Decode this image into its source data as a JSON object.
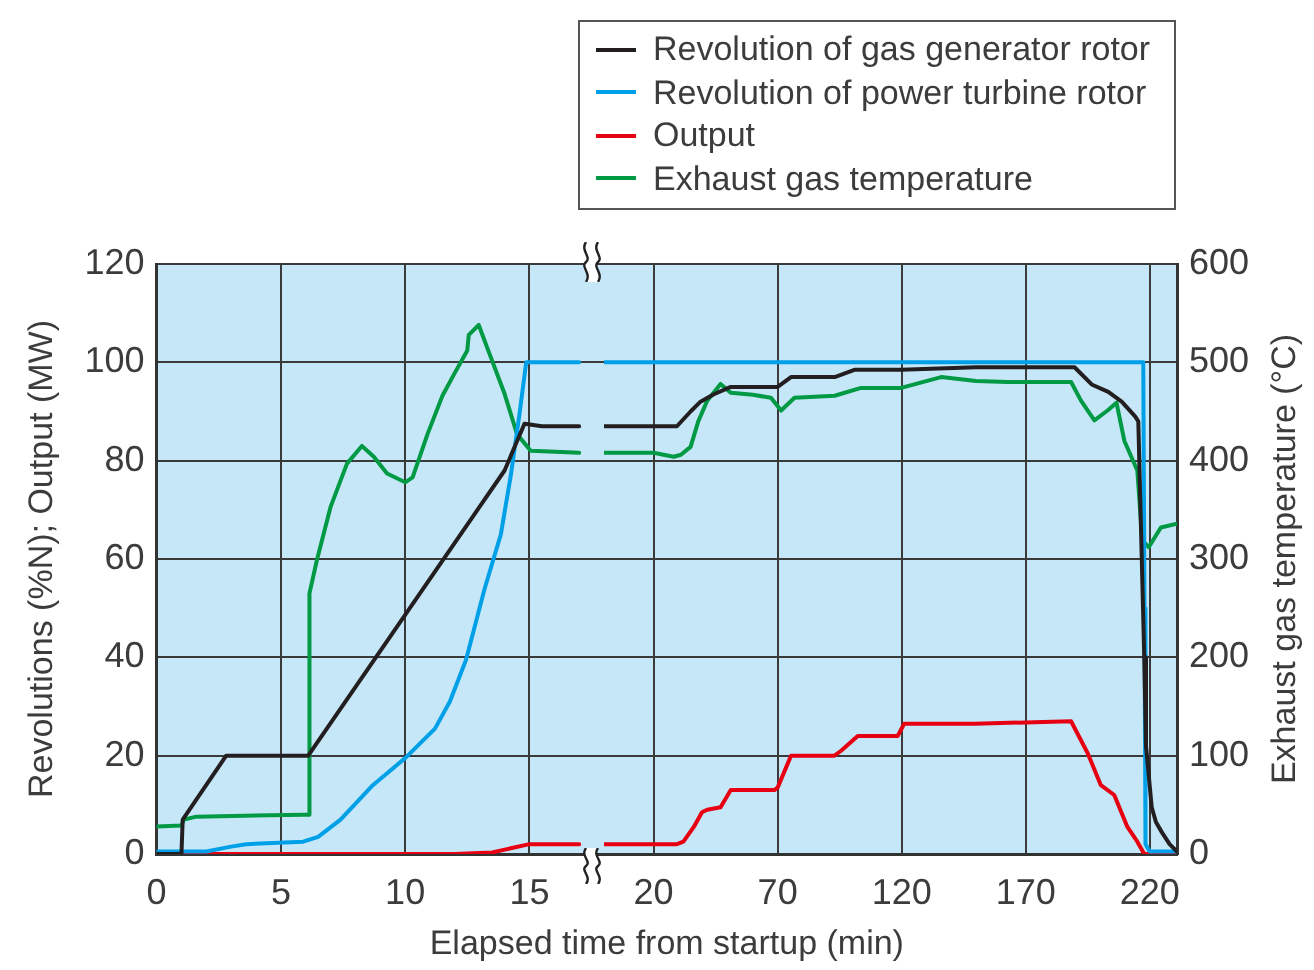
{
  "chart_data": [
    {
      "type": "line",
      "ylabel": "Revolutions (%N); Output (MW)",
      "xlim": [
        0,
        18
      ],
      "xticks": [
        0,
        5,
        10,
        15
      ],
      "ylim": [
        0,
        120
      ],
      "yticks": [
        0,
        20,
        40,
        60,
        80,
        100,
        120
      ],
      "y2lim": [
        0,
        600
      ],
      "tick_labels": "xy",
      "grid": true,
      "marker": "none",
      "line_style": "solid",
      "series": [
        {
          "color": "#231f20",
          "x": [
            0,
            1.0,
            1.05,
            2.8,
            6.1,
            14.0,
            14.8,
            15.5,
            17
          ],
          "values": [
            0,
            0,
            7,
            20,
            20,
            78,
            87.5,
            87,
            87
          ]
        },
        {
          "color": "#00a0e9",
          "x": [
            0,
            2,
            3,
            3.6,
            5.9,
            6.5,
            7.4,
            8.7,
            10,
            11.2,
            11.8,
            12.45,
            13.2,
            13.85,
            14.25,
            14.6,
            14.87,
            17
          ],
          "values": [
            0.5,
            0.5,
            1.5,
            2,
            2.5,
            3.5,
            7,
            14,
            19.5,
            25.5,
            31,
            39.5,
            54,
            65,
            77,
            89.5,
            100,
            100
          ]
        },
        {
          "color": "#e60012",
          "x": [
            0,
            12,
            13.5,
            14.1,
            15,
            17
          ],
          "values": [
            0,
            0,
            0.3,
            1,
            2,
            2
          ]
        },
        {
          "color": "#009944",
          "axis": "y2",
          "x": [
            0,
            1.0,
            1.1,
            1.6,
            5.9,
            6.1,
            6.15,
            6.45,
            7.0,
            7.66,
            8.26,
            8.74,
            9.27,
            10,
            10.3,
            10.9,
            11.5,
            11.97,
            12.5,
            12.56,
            12.96,
            13.3,
            14.0,
            14.5,
            15.05,
            17
          ],
          "values": [
            28,
            29,
            35,
            38,
            40,
            40,
            265,
            299,
            353,
            397,
            415,
            404,
            387,
            378,
            383,
            427,
            466,
            488,
            512,
            528,
            538,
            515,
            468,
            427,
            410,
            408
          ]
        }
      ]
    },
    {
      "type": "line",
      "xlabel": "Elapsed time from startup (min)",
      "y2label": "Exhaust gas temperature (°C)",
      "xlim": [
        0,
        231
      ],
      "xticks": [
        20,
        70,
        120,
        170,
        220
      ],
      "ylim": [
        0,
        120
      ],
      "y2lim": [
        0,
        600
      ],
      "y2ticks": [
        0,
        100,
        200,
        300,
        400,
        500,
        600
      ],
      "grid": true,
      "legend": "top right",
      "marker": "none",
      "line_style": "solid",
      "series": [
        {
          "name": "Revolution of gas generator rotor",
          "color": "#231f20",
          "x": [
            0,
            29.4,
            34.9,
            38.9,
            44.3,
            51.1,
            70,
            75.4,
            93,
            101.2,
            119.8,
            150,
            170,
            189.7,
            196.6,
            203.3,
            208.7,
            214.1,
            215.4,
            217.8,
            218.5,
            220.8,
            222.5,
            224.8,
            228,
            231
          ],
          "values": [
            87,
            87,
            90,
            92,
            93.5,
            95,
            95,
            97,
            97,
            98.5,
            98.5,
            99,
            99,
            99,
            95.5,
            94,
            92,
            89,
            88,
            40,
            22,
            9.5,
            6.5,
            4.5,
            2,
            0.5
          ]
        },
        {
          "name": "Revolution of power turbine rotor",
          "color": "#00a0e9",
          "x": [
            0,
            217.4,
            217.9,
            218.3,
            220,
            231
          ],
          "values": [
            100,
            100,
            50,
            2,
            0.5,
            0.5
          ]
        },
        {
          "name": "Output",
          "color": "#e60012",
          "x": [
            0,
            29.4,
            32,
            36.2,
            39.5,
            41.6,
            47,
            51.1,
            68.7,
            70,
            75.4,
            92.9,
            95.6,
            102.3,
            118.4,
            121,
            149.4,
            188.3,
            195,
            200.3,
            205.7,
            211,
            215,
            217.8,
            231
          ],
          "values": [
            2,
            2,
            2.5,
            5.5,
            8.5,
            9,
            9.5,
            13,
            13,
            13.5,
            20,
            20,
            21,
            24,
            24,
            26.5,
            26.5,
            27,
            20.5,
            14,
            12,
            5.5,
            2.5,
            0,
            0
          ]
        },
        {
          "name": "Exhaust gas temperature",
          "color": "#009944",
          "axis": "y2",
          "x": [
            0,
            20,
            24,
            28.1,
            31,
            34.9,
            38,
            41.6,
            47,
            51.1,
            60,
            67.3,
            71.4,
            76.8,
            93,
            103.6,
            119.8,
            135.9,
            150,
            162.7,
            188.3,
            192.3,
            197.7,
            203,
            206.6,
            209.8,
            215,
            217,
            219.6,
            224.5,
            231
          ],
          "values": [
            408,
            408,
            406,
            404,
            406,
            414,
            440,
            461,
            478,
            469,
            467,
            464,
            451,
            464,
            466,
            474,
            474,
            485,
            481,
            480,
            480,
            461,
            441,
            451,
            459,
            420,
            390,
            319,
            312,
            332,
            336
          ]
        }
      ]
    }
  ]
}
